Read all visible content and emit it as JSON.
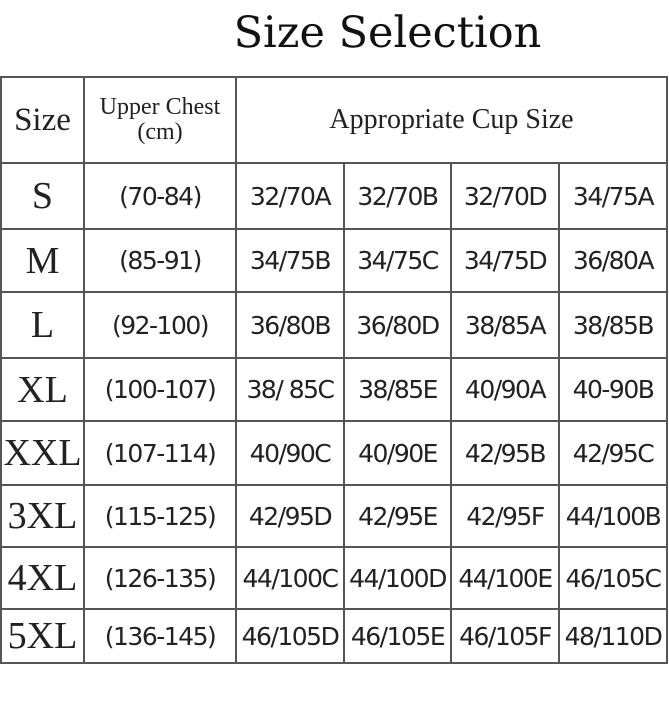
{
  "title": "Size Selection",
  "header": {
    "size": "Size",
    "upper_chest": "Upper Chest",
    "upper_chest_unit": "(cm)",
    "cup_size": "Appropriate Cup Size"
  },
  "rows": [
    {
      "size": "S",
      "chest": "(70-84)",
      "cups": [
        "32/70A",
        "32/70B",
        "32/70D",
        "34/75A"
      ]
    },
    {
      "size": "M",
      "chest": "(85-91)",
      "cups": [
        "34/75B",
        "34/75C",
        "34/75D",
        "36/80A"
      ]
    },
    {
      "size": "L",
      "chest": "(92-100)",
      "cups": [
        "36/80B",
        "36/80D",
        "38/85A",
        "38/85B"
      ]
    },
    {
      "size": "XL",
      "chest": "(100-107)",
      "cups": [
        "38/ 85C",
        "38/85E",
        "40/90A",
        "40-90B"
      ]
    },
    {
      "size": "XXL",
      "chest": "(107-114)",
      "cups": [
        "40/90C",
        "40/90E",
        "42/95B",
        "42/95C"
      ]
    },
    {
      "size": "3XL",
      "chest": "(115-125)",
      "cups": [
        "42/95D",
        "42/95E",
        "42/95F",
        "44/100B"
      ]
    },
    {
      "size": "4XL",
      "chest": "(126-135)",
      "cups": [
        "44/100C",
        "44/100D",
        "44/100E",
        "46/105C"
      ]
    },
    {
      "size": "5XL",
      "chest": "(136-145)",
      "cups": [
        "46/105D",
        "46/105E",
        "46/105F",
        "48/110D"
      ]
    }
  ]
}
